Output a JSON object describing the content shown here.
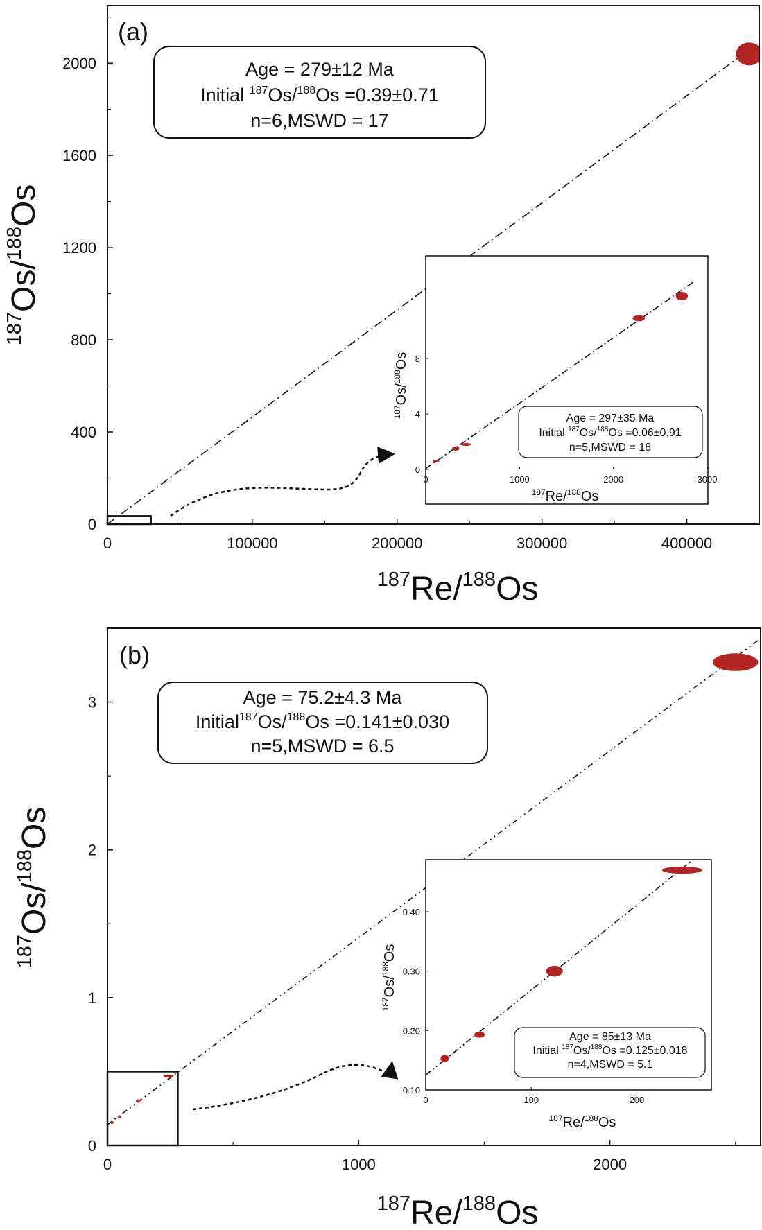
{
  "chart_data": [
    {
      "type": "scatter",
      "panel_label": "(a)",
      "xlabel": {
        "sup1": "187",
        "base1": "Re/",
        "sup2": "188",
        "base2": "Os"
      },
      "ylabel": {
        "sup1": "187",
        "base1": "Os/",
        "sup2": "188",
        "base2": "Os"
      },
      "xlim": [
        0,
        450000
      ],
      "ylim": [
        0,
        2250
      ],
      "x_ticks": [
        0,
        100000,
        200000,
        300000,
        400000
      ],
      "y_ticks": [
        0,
        400,
        800,
        1200,
        1600,
        2000
      ],
      "points": [
        {
          "x": 443000,
          "y": 2040,
          "ex": 9000,
          "ey": 50
        }
      ],
      "isochron": {
        "x": [
          0,
          450000
        ],
        "y": [
          0.39,
          2091
        ]
      },
      "annotation": {
        "line1": "Age = 279±12 Ma",
        "line2_pre": "Initial ",
        "line2_sup1": "187",
        "line2_mid": "Os/",
        "line2_sup2": "188",
        "line2_post": "Os =0.39±0.71",
        "line3": "n=6,MSWD = 17"
      },
      "zoom_box": {
        "x": [
          0,
          30000
        ],
        "y": [
          0,
          35
        ]
      },
      "inset": {
        "xlabel": {
          "sup1": "187",
          "base1": "Re/",
          "sup2": "188",
          "base2": "Os"
        },
        "ylabel": {
          "sup1": "187",
          "base1": "Os/",
          "sup2": "188",
          "base2": "Os"
        },
        "xlim": [
          0,
          3000
        ],
        "ylim": [
          0,
          12
        ],
        "x_ticks": [
          0,
          1000,
          2000,
          3000
        ],
        "y_ticks": [
          0,
          4,
          8
        ],
        "points": [
          {
            "x": 110,
            "y": 0.6,
            "ex": 35,
            "ey": 0.1
          },
          {
            "x": 320,
            "y": 1.5,
            "ex": 40,
            "ey": 0.15
          },
          {
            "x": 430,
            "y": 1.8,
            "ex": 55,
            "ey": 0.1
          },
          {
            "x": 2270,
            "y": 10.9,
            "ex": 65,
            "ey": 0.22
          },
          {
            "x": 2730,
            "y": 12.5,
            "ex": 65,
            "ey": 0.3
          }
        ],
        "isochron": {
          "x": [
            0,
            2850
          ],
          "y": [
            0.06,
            13.5
          ]
        },
        "annotation": {
          "line1": "Age = 297±35 Ma",
          "line2_pre": "Initial ",
          "line2_sup1": "187",
          "line2_mid": "Os/",
          "line2_sup2": "188",
          "line2_post": "Os =0.06±0.91",
          "line3": "n=5,MSWD = 18"
        }
      }
    },
    {
      "type": "scatter",
      "panel_label": "(b)",
      "xlabel": {
        "sup1": "187",
        "base1": "Re/",
        "sup2": "188",
        "base2": "Os"
      },
      "ylabel": {
        "sup1": "187",
        "base1": "Os/",
        "sup2": "188",
        "base2": "Os"
      },
      "xlim": [
        0,
        2600
      ],
      "ylim": [
        0,
        3.5
      ],
      "x_ticks": [
        0,
        1000,
        2000
      ],
      "y_ticks": [
        0,
        1,
        2,
        3
      ],
      "points": [
        {
          "x": 18,
          "y": 0.155,
          "ex": 5,
          "ey": 0.006
        },
        {
          "x": 48,
          "y": 0.195,
          "ex": 8,
          "ey": 0.006
        },
        {
          "x": 122,
          "y": 0.3,
          "ex": 9,
          "ey": 0.012
        },
        {
          "x": 243,
          "y": 0.47,
          "ex": 20,
          "ey": 0.008
        },
        {
          "x": 2500,
          "y": 3.27,
          "ex": 90,
          "ey": 0.06
        }
      ],
      "isochron": {
        "x": [
          0,
          2600
        ],
        "y": [
          0.141,
          3.43
        ]
      },
      "annotation": {
        "line1": "Age = 75.2±4.3 Ma",
        "line2_pre": "Initial",
        "line2_sup1": "187",
        "line2_mid": "Os/",
        "line2_sup2": "188",
        "line2_post": "Os =0.141±0.030",
        "line3": "n=5,MSWD = 6.5"
      },
      "zoom_box": {
        "x": [
          0,
          280
        ],
        "y": [
          0,
          0.5
        ]
      },
      "inset": {
        "xlabel": {
          "sup1": "187",
          "base1": "Re/",
          "sup2": "188",
          "base2": "Os"
        },
        "ylabel": {
          "sup1": "187",
          "base1": "Os/",
          "sup2": "188",
          "base2": "Os"
        },
        "xlim": [
          0,
          270
        ],
        "ylim": [
          0.1,
          0.47
        ],
        "x_ticks": [
          0,
          100,
          200
        ],
        "y_ticks": [
          0.1,
          0.2,
          0.3,
          0.4
        ],
        "y_tick_labels": [
          "0.10",
          "0.20",
          "0.30",
          "0.40"
        ],
        "points": [
          {
            "x": 18,
            "y": 0.153,
            "ex": 4,
            "ey": 0.006
          },
          {
            "x": 51,
            "y": 0.193,
            "ex": 5,
            "ey": 0.005
          },
          {
            "x": 122,
            "y": 0.3,
            "ex": 8,
            "ey": 0.009
          },
          {
            "x": 243,
            "y": 0.47,
            "ex": 19,
            "ey": 0.006
          }
        ],
        "isochron": {
          "x": [
            0,
            255
          ],
          "y": [
            0.125,
            0.49
          ]
        },
        "annotation": {
          "line1": "Age = 85±13 Ma",
          "line2_pre": "Initial ",
          "line2_sup1": "187",
          "line2_mid": "Os/",
          "line2_sup2": "188",
          "line2_post": "Os =0.125±0.018",
          "line3": "n=4,MSWD = 5.1"
        }
      }
    }
  ],
  "colors": {
    "marker": "#b32424",
    "axis": "#111111",
    "line": "#111111"
  }
}
